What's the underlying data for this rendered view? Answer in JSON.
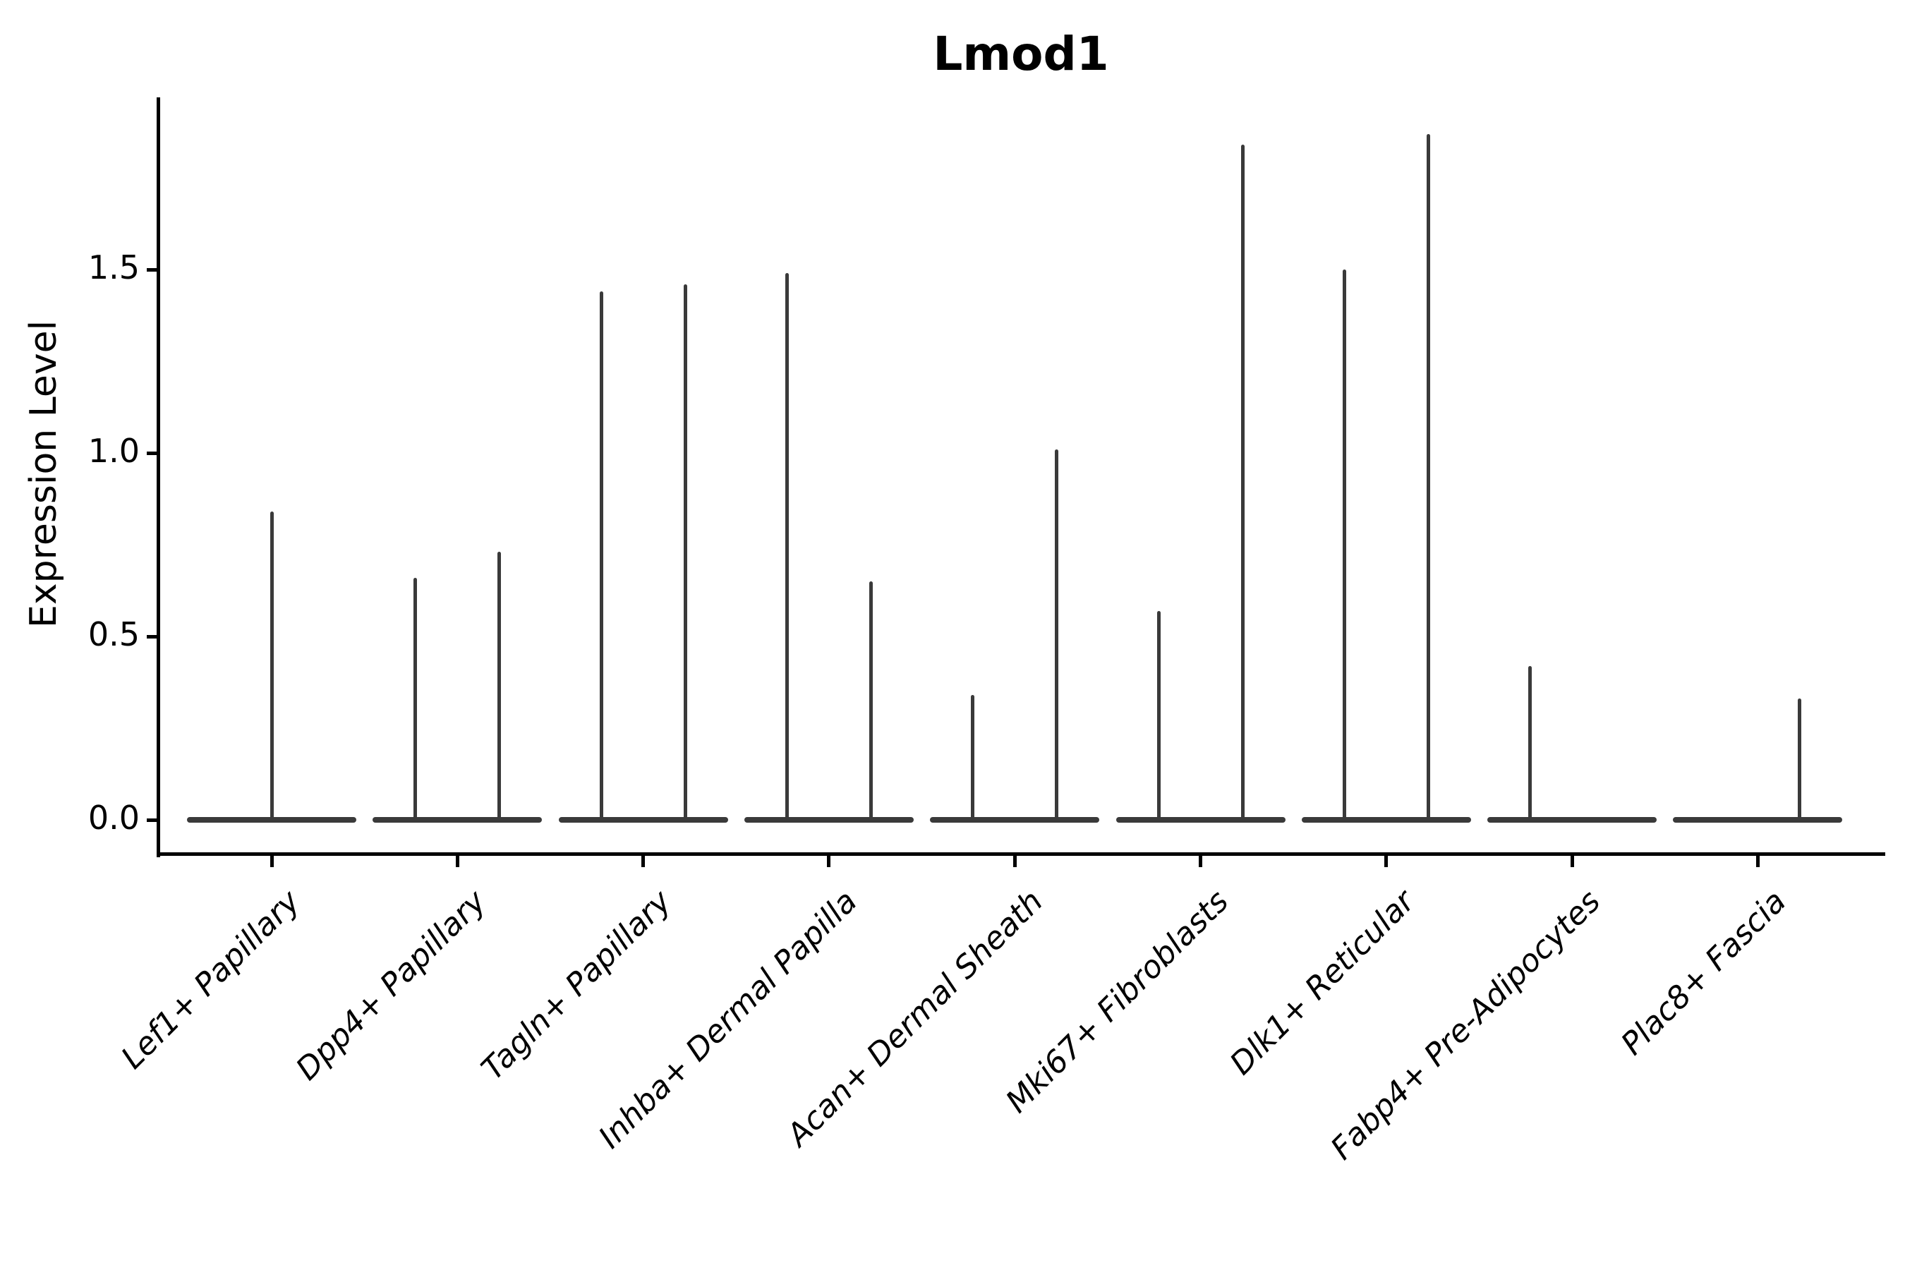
{
  "title": "Lmod1",
  "ylabel": "Expression Level",
  "colors": {
    "violin": "#3a3a3a",
    "axis": "#000000",
    "text": "#000000",
    "background": "#ffffff"
  },
  "chart_data": {
    "type": "violin",
    "title": "Lmod1",
    "xlabel": "",
    "ylabel": "Expression Level",
    "ylim": [
      0,
      1.95
    ],
    "yticks": [
      {
        "value": 0.0,
        "label": "0.0"
      },
      {
        "value": 0.5,
        "label": "0.5"
      },
      {
        "value": 1.0,
        "label": "1.0"
      },
      {
        "value": 1.5,
        "label": "1.5"
      }
    ],
    "grid": "off",
    "legend": "none",
    "categories": [
      "Lef1+ Papillary",
      "Dpp4+ Papillary",
      "Tagln+ Papillary",
      "Inhba+ Dermal Papilla",
      "Acan+ Dermal Sheath",
      "Mki67+ Fibroblasts",
      "Dlk1+ Reticular",
      "Fabp4+ Pre-Adipocytes",
      "Plac8+ Fascia"
    ],
    "note": "Each category shows a flat needle-violin: wide flat density bar at expression 0 plus thin vertical spike(s) reaching the maximum expression value; spikes sit at center or at left/right dodge offsets within the category.",
    "violins": [
      {
        "category": "Lef1+ Papillary",
        "baseline_at": 0,
        "spikes": [
          {
            "position": "center",
            "max": 0.84
          }
        ]
      },
      {
        "category": "Dpp4+ Papillary",
        "baseline_at": 0,
        "spikes": [
          {
            "position": "left",
            "max": 0.66
          },
          {
            "position": "right",
            "max": 0.73
          }
        ]
      },
      {
        "category": "Tagln+ Papillary",
        "baseline_at": 0,
        "spikes": [
          {
            "position": "left",
            "max": 1.44
          },
          {
            "position": "right",
            "max": 1.46
          }
        ]
      },
      {
        "category": "Inhba+ Dermal Papilla",
        "baseline_at": 0,
        "spikes": [
          {
            "position": "left",
            "max": 1.49
          },
          {
            "position": "right",
            "max": 0.65
          }
        ]
      },
      {
        "category": "Acan+ Dermal Sheath",
        "baseline_at": 0,
        "spikes": [
          {
            "position": "left",
            "max": 0.34
          },
          {
            "position": "right",
            "max": 1.01
          }
        ]
      },
      {
        "category": "Mki67+ Fibroblasts",
        "baseline_at": 0,
        "spikes": [
          {
            "position": "left",
            "max": 0.57
          },
          {
            "position": "right",
            "max": 1.84
          }
        ]
      },
      {
        "category": "Dlk1+ Reticular",
        "baseline_at": 0,
        "spikes": [
          {
            "position": "left",
            "max": 1.5
          },
          {
            "position": "right",
            "max": 1.87
          }
        ]
      },
      {
        "category": "Fabp4+ Pre-Adipocytes",
        "baseline_at": 0,
        "spikes": [
          {
            "position": "left",
            "max": 0.42
          }
        ]
      },
      {
        "category": "Plac8+ Fascia",
        "baseline_at": 0,
        "spikes": [
          {
            "position": "right",
            "max": 0.33
          }
        ]
      }
    ]
  }
}
